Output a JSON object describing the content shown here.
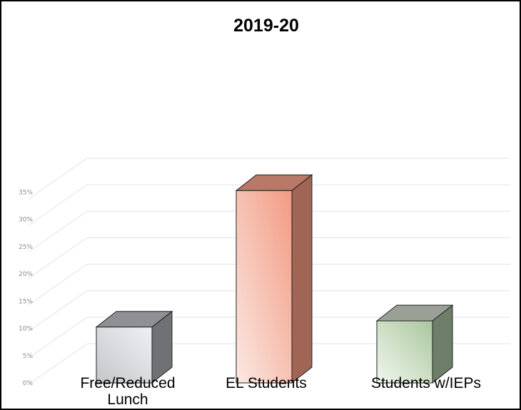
{
  "chart_data": {
    "type": "bar",
    "title": "2019-20",
    "categories": [
      "Free/Reduced Lunch",
      "EL Students",
      "Students w/IEPs"
    ],
    "category_lines": [
      [
        "Free/Reduced",
        "Lunch"
      ],
      [
        "EL Students"
      ],
      [
        "Students w/IEPs"
      ]
    ],
    "values": [
      9,
      31,
      10
    ],
    "unit": "%",
    "ylim": [
      0,
      35
    ],
    "ytick_labels": [
      "0%",
      "5%",
      "10%",
      "15%",
      "20%",
      "25%",
      "30%",
      "35%"
    ],
    "xlabel": "",
    "ylabel": "",
    "grid": true,
    "style": "3d",
    "colors": [
      {
        "front_left": "#c4c6ca",
        "front_right": "#eef0f3",
        "side": "#6f7175",
        "top": "#8e9094"
      },
      {
        "front_left": "#fbe9e3",
        "front_right": "#f29a82",
        "side": "#a06555",
        "top": "#b87968"
      },
      {
        "front_left": "#f1f6ee",
        "front_right": "#a9c79c",
        "side": "#6d7e69",
        "top": "#9aa095"
      }
    ]
  }
}
